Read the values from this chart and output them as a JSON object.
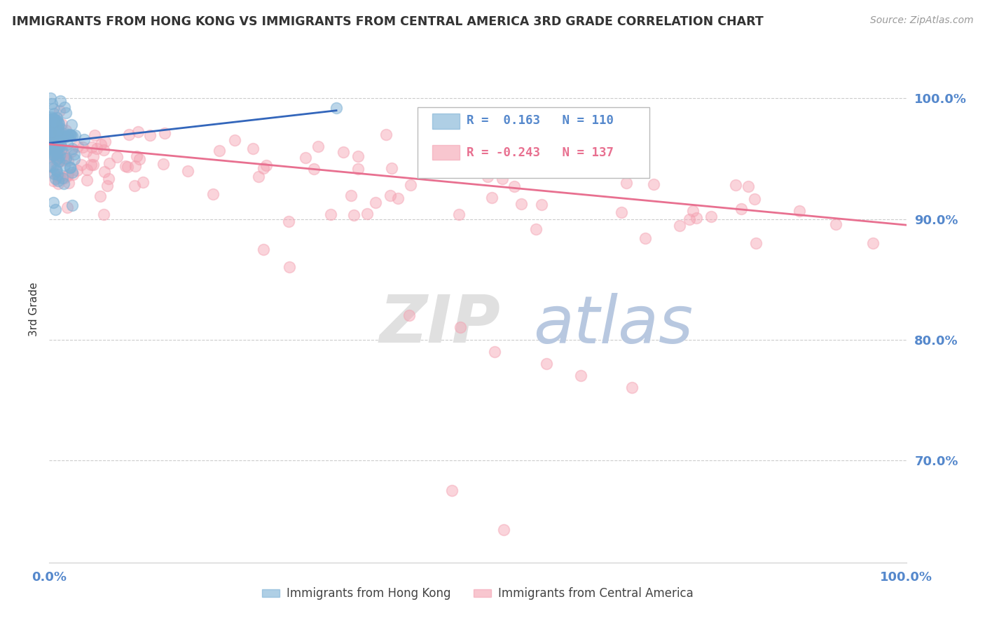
{
  "title": "IMMIGRANTS FROM HONG KONG VS IMMIGRANTS FROM CENTRAL AMERICA 3RD GRADE CORRELATION CHART",
  "source_text": "Source: ZipAtlas.com",
  "ylabel": "3rd Grade",
  "ytick_labels": [
    "100.0%",
    "90.0%",
    "80.0%",
    "70.0%"
  ],
  "ytick_values": [
    1.0,
    0.9,
    0.8,
    0.7
  ],
  "xlim": [
    0.0,
    1.0
  ],
  "ylim": [
    0.615,
    1.035
  ],
  "legend_blue_R": "0.163",
  "legend_blue_N": "110",
  "legend_pink_R": "-0.243",
  "legend_pink_N": "137",
  "legend_label_blue": "Immigrants from Hong Kong",
  "legend_label_pink": "Immigrants from Central America",
  "blue_color": "#7BAFD4",
  "pink_color": "#F4A0B0",
  "blue_line_color": "#3366BB",
  "pink_line_color": "#E87090",
  "title_color": "#333333",
  "axis_tick_color": "#5588CC",
  "source_color": "#999999",
  "ylabel_color": "#333333",
  "watermark_ZIP_color": "#E0E0E0",
  "watermark_atlas_color": "#B8C8E0",
  "grid_color": "#CCCCCC"
}
